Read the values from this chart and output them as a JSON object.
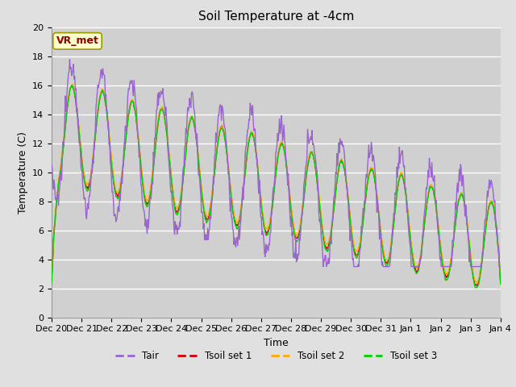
{
  "title": "Soil Temperature at -4cm",
  "xlabel": "Time",
  "ylabel": "Temperature (C)",
  "ylim": [
    0,
    20
  ],
  "yticks": [
    0,
    2,
    4,
    6,
    8,
    10,
    12,
    14,
    16,
    18,
    20
  ],
  "xtick_labels": [
    "Dec 20",
    "Dec 21",
    "Dec 22",
    "Dec 23",
    "Dec 24",
    "Dec 25",
    "Dec 26",
    "Dec 27",
    "Dec 28",
    "Dec 29",
    "Dec 30",
    "Dec 31",
    "Jan 1",
    "Jan 2",
    "Jan 3",
    "Jan 4"
  ],
  "annotation_text": "VR_met",
  "line_colors": {
    "Tair": "#9966cc",
    "Tsoil1": "#cc0000",
    "Tsoil2": "#ffaa00",
    "Tsoil3": "#00cc00"
  },
  "legend_labels": [
    "Tair",
    "Tsoil set 1",
    "Tsoil set 2",
    "Tsoil set 3"
  ],
  "fig_bg_color": "#e0e0e0",
  "plot_bg_color": "#d0d0d0",
  "title_fontsize": 11,
  "label_fontsize": 9,
  "tick_fontsize": 8,
  "annotation_fontsize": 9
}
